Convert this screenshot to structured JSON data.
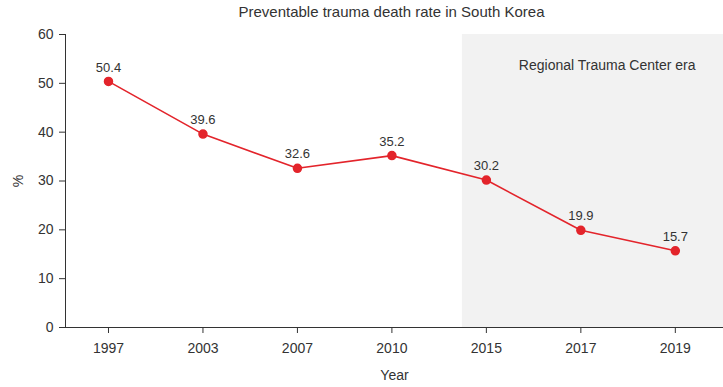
{
  "chart_data": {
    "type": "line",
    "title": "Preventable trauma death rate in South Korea",
    "x_label": "Year",
    "y_label": "%",
    "categories": [
      "1997",
      "2003",
      "2007",
      "2010",
      "2015",
      "2017",
      "2019"
    ],
    "values": [
      50.4,
      39.6,
      32.6,
      35.2,
      30.2,
      19.9,
      15.7
    ],
    "color": "#e3242b",
    "marker": "circle",
    "line_style": "solid",
    "data_labels": true,
    "ylim": [
      0,
      60
    ],
    "yticks": [
      0,
      10,
      20,
      30,
      40,
      50,
      60
    ],
    "grid": false,
    "annotations": [
      {
        "text": "Regional Trauma Center era",
        "start": "2015"
      }
    ]
  }
}
